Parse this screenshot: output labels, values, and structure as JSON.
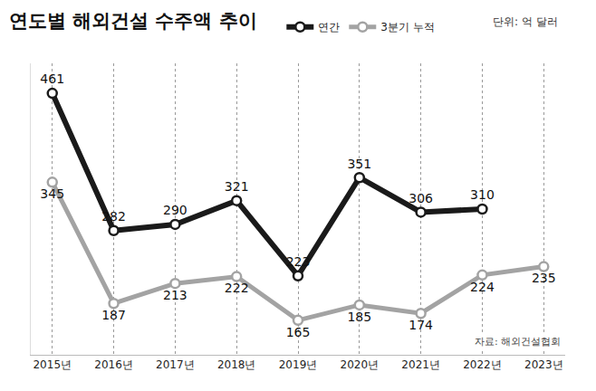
{
  "chart_data": {
    "type": "line",
    "title": "연도별 해외건설 수주액 추이",
    "subtitle": "단위: 억 달러",
    "annotations": [
      "자료: 해외건설협회"
    ],
    "categories": [
      "2015년",
      "2016년",
      "2017년",
      "2018년",
      "2019년",
      "2020년",
      "2021년",
      "2022년",
      "2023년"
    ],
    "series": [
      {
        "name": "연간",
        "color": "#1a1a1a",
        "marker": "circle",
        "values": [
          461,
          282,
          290,
          321,
          223,
          351,
          306,
          310,
          null
        ]
      },
      {
        "name": "3분기 누적",
        "color": "#a3a3a3",
        "marker": "circle",
        "values": [
          345,
          187,
          213,
          222,
          165,
          185,
          174,
          224,
          235
        ]
      }
    ],
    "ylim": [
      120,
      500
    ],
    "tick_labels": "x",
    "grid": true,
    "legend": "top",
    "data_labels": true
  }
}
